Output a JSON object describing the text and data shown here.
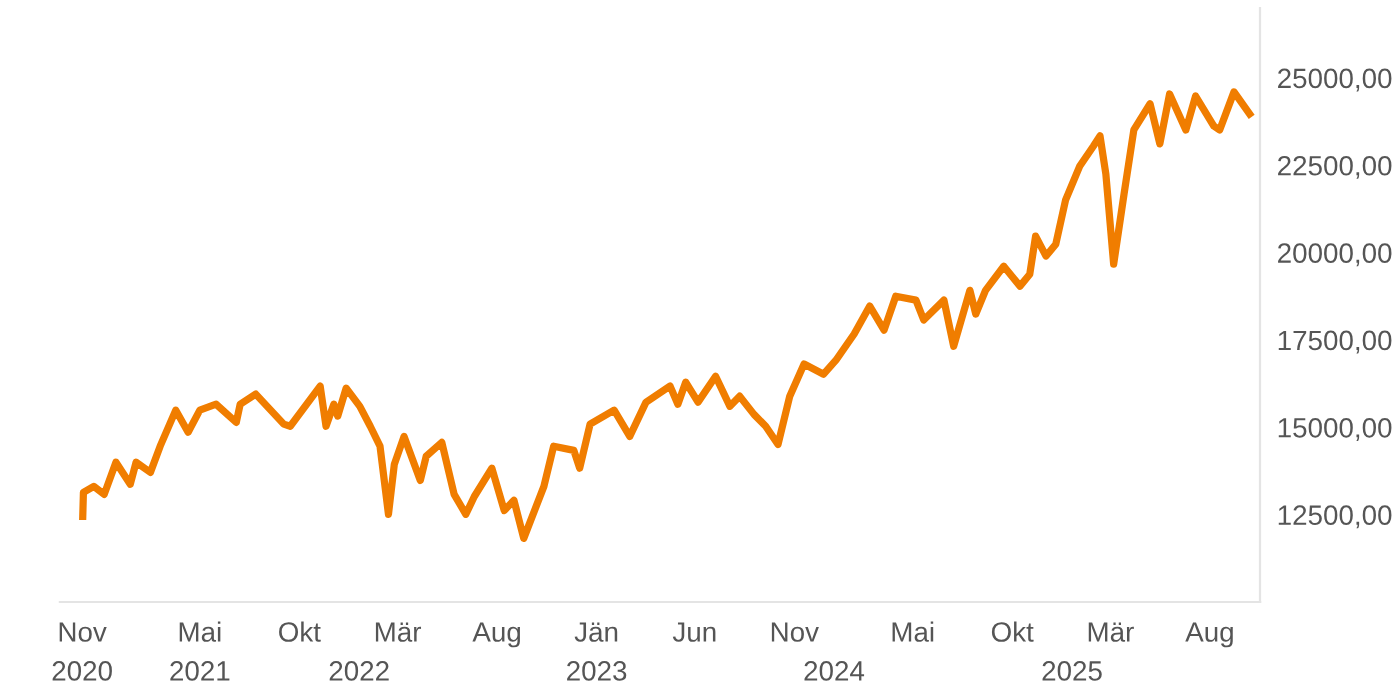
{
  "chart_data": {
    "type": "line",
    "x": [
      "2020-11-02",
      "2020-11-03",
      "2020-11-19",
      "2020-12-05",
      "2020-12-23",
      "2021-01-14",
      "2021-01-23",
      "2021-02-14",
      "2021-03-01",
      "2021-03-25",
      "2021-04-13",
      "2021-05-01",
      "2021-05-26",
      "2021-06-26",
      "2021-07-02",
      "2021-07-26",
      "2021-09-07",
      "2021-09-17",
      "2021-11-02",
      "2021-11-11",
      "2021-11-23",
      "2021-11-29",
      "2021-12-12",
      "2022-01-02",
      "2022-01-18",
      "2022-02-02",
      "2022-02-15",
      "2022-02-24",
      "2022-03-11",
      "2022-04-05",
      "2022-04-14",
      "2022-05-08",
      "2022-05-27",
      "2022-06-14",
      "2022-06-27",
      "2022-07-24",
      "2022-08-12",
      "2022-08-27",
      "2022-09-11",
      "2022-10-12",
      "2022-10-27",
      "2022-11-27",
      "2022-12-06",
      "2022-12-22",
      "2023-01-28",
      "2023-02-21",
      "2023-03-18",
      "2023-04-24",
      "2023-05-06",
      "2023-05-18",
      "2023-06-06",
      "2023-07-03",
      "2023-07-25",
      "2023-08-09",
      "2023-08-31",
      "2023-09-18",
      "2023-10-07",
      "2023-10-25",
      "2023-11-16",
      "2023-12-16",
      "2024-01-04",
      "2024-02-01",
      "2024-02-25",
      "2024-03-18",
      "2024-04-05",
      "2024-05-06",
      "2024-05-18",
      "2024-06-18",
      "2024-07-03",
      "2024-07-28",
      "2024-08-06",
      "2024-08-21",
      "2024-09-18",
      "2024-10-13",
      "2024-10-28",
      "2024-11-06",
      "2024-11-22",
      "2024-12-07",
      "2024-12-22",
      "2025-01-13",
      "2025-02-03",
      "2025-02-13",
      "2025-02-22",
      "2025-03-06",
      "2025-03-22",
      "2025-04-06",
      "2025-05-01",
      "2025-05-16",
      "2025-05-31",
      "2025-06-25",
      "2025-07-10",
      "2025-08-07",
      "2025-08-16",
      "2025-09-07",
      "2025-10-01"
    ],
    "series": [
      {
        "color": "#f07d00",
        "values": [
          12450,
          13140,
          13310,
          13080,
          14000,
          13370,
          14000,
          13710,
          14460,
          15490,
          14860,
          15490,
          15660,
          15140,
          15660,
          15950,
          15090,
          15030,
          16180,
          15030,
          15660,
          15320,
          16120,
          15600,
          15030,
          14460,
          12510,
          13940,
          14740,
          13480,
          14170,
          14570,
          13080,
          12510,
          13020,
          13830,
          12620,
          12910,
          11820,
          13310,
          14460,
          14340,
          13830,
          15090,
          15490,
          14740,
          15720,
          16180,
          15660,
          16290,
          15720,
          16460,
          15600,
          15890,
          15370,
          15030,
          14510,
          15890,
          16810,
          16520,
          16920,
          17670,
          18470,
          17780,
          18750,
          18640,
          18070,
          18640,
          17320,
          18920,
          18240,
          18920,
          19610,
          19040,
          19380,
          20470,
          19900,
          20240,
          21500,
          22480,
          23050,
          23340,
          22250,
          19670,
          21680,
          23510,
          24260,
          23110,
          24540,
          23510,
          24480,
          23620,
          23510,
          24600,
          23970
        ]
      }
    ],
    "xticks": [
      {
        "value": "2020-11-01",
        "label": "Nov"
      },
      {
        "value": "2021-05-01",
        "label": "Mai"
      },
      {
        "value": "2021-10-01",
        "label": "Okt"
      },
      {
        "value": "2022-03-01",
        "label": "Mär"
      },
      {
        "value": "2022-08-01",
        "label": "Aug"
      },
      {
        "value": "2023-01-01",
        "label": "Jän"
      },
      {
        "value": "2023-06-01",
        "label": "Jun"
      },
      {
        "value": "2023-11-01",
        "label": "Nov"
      },
      {
        "value": "2024-05-01",
        "label": "Mai"
      },
      {
        "value": "2024-10-01",
        "label": "Okt"
      },
      {
        "value": "2025-03-01",
        "label": "Mär"
      },
      {
        "value": "2025-08-01",
        "label": "Aug"
      }
    ],
    "xlim": [
      "2020-09-28",
      "2025-10-17"
    ],
    "x2lim": [
      "2020-09-28",
      "2025-10-17"
    ],
    "ylim": [
      10000,
      27000
    ],
    "x2ticks": [
      {
        "value": "2020-11-01",
        "label": "2020"
      },
      {
        "value": "2021-05-01",
        "label": "2021"
      },
      {
        "value": "2022-01-01",
        "label": "2022"
      },
      {
        "value": "2023-01-01",
        "label": "2023"
      },
      {
        "value": "2024-01-01",
        "label": "2024"
      },
      {
        "value": "2025-01-01",
        "label": "2025"
      }
    ],
    "yticks": [
      {
        "value": 12500,
        "label": "12500,00"
      },
      {
        "value": 15000,
        "label": "15000,00"
      },
      {
        "value": 17500,
        "label": "17500,00"
      },
      {
        "value": 20000,
        "label": "20000,00"
      },
      {
        "value": 22500,
        "label": "22500,00"
      },
      {
        "value": 25000,
        "label": "25000,00"
      }
    ],
    "grid": false,
    "legend": false,
    "marker": "none",
    "line_style": "solid"
  }
}
